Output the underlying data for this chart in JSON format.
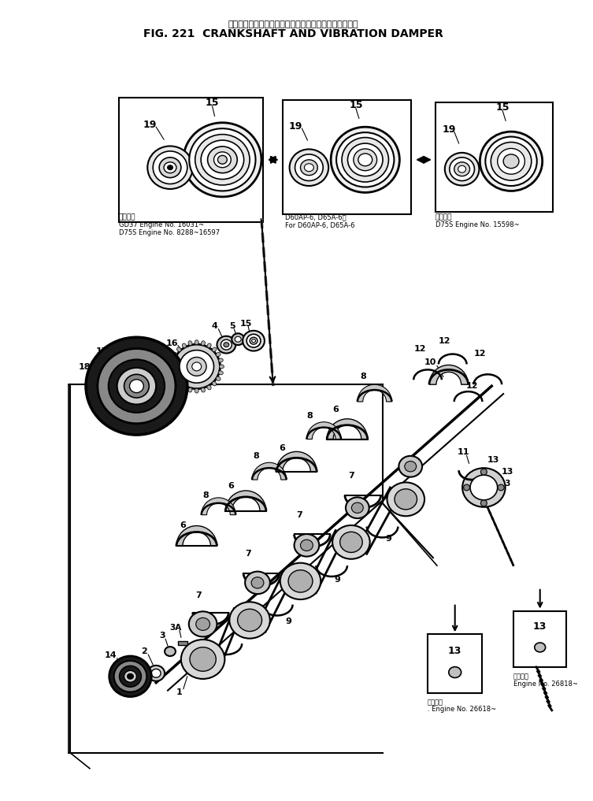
{
  "title_jp": "クランクシャフト　および　バイブレーション　ダンパ",
  "title_en": "FIG. 221  CRANKSHAFT AND VIBRATION DAMPER",
  "bg_color": "#ffffff",
  "box1_label_jp": "適用号等",
  "box1_label": "GD37 Engine No. 16031~\nD75S Engine No. 8288~16597",
  "box2_label": "D60AP-6, D65A-6用\nFor D60AP-6, D65A-6",
  "box3_label_jp": "適用号等",
  "box3_label": "D75S Engine No. 15598~",
  "bottom_label1_jp": "適用号等",
  "bottom_label1": ". Engine No. 26618~",
  "bottom_label2_jp": "適用号等",
  "bottom_label2": "Engine No. 26818~"
}
